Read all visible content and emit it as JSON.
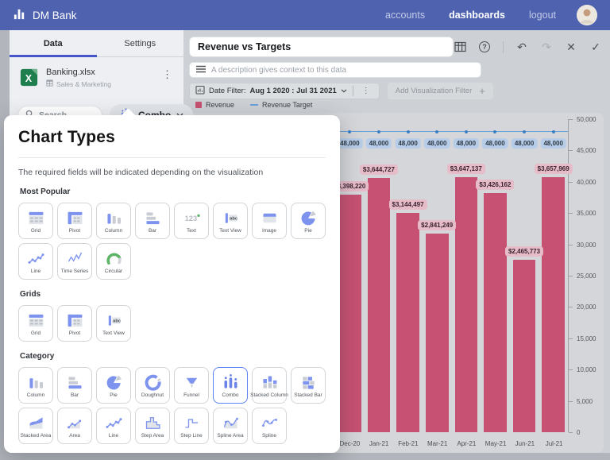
{
  "navbar": {
    "brand": "DM Bank",
    "links": [
      {
        "label": "accounts",
        "active": false
      },
      {
        "label": "dashboards",
        "active": true
      },
      {
        "label": "logout",
        "active": false
      }
    ]
  },
  "left_panel": {
    "tabs": [
      {
        "label": "Data",
        "active": true
      },
      {
        "label": "Settings",
        "active": false
      }
    ],
    "file": {
      "name": "Banking.xlsx",
      "sheet": "Sales & Marketing"
    },
    "search_placeholder": "Search...",
    "chart_type_button": {
      "label": "Combo",
      "icon": "combo-icon"
    }
  },
  "header": {
    "title": "Revenue vs Targets",
    "description_placeholder": "A description gives context to this data",
    "date_filter": {
      "label": "Date Filter:",
      "value": "Aug 1 2020 : Jul 31 2021"
    },
    "add_filter_label": "Add Visualization Filter",
    "toolbar_icons": [
      "table-grid-icon",
      "help-icon",
      "undo-icon",
      "redo-icon",
      "close-icon",
      "confirm-icon"
    ]
  },
  "chart_data": {
    "type": "combo",
    "title": "Revenue vs Targets",
    "categories": [
      "Dec-20",
      "Jan-21",
      "Feb-21",
      "Mar-21",
      "Apr-21",
      "May-21",
      "Jun-21",
      "Jul-21"
    ],
    "series": [
      {
        "name": "Revenue",
        "type": "column",
        "color": "#c65172",
        "values": [
          3398220,
          3644727,
          3144497,
          2841249,
          3647137,
          3426162,
          2465773,
          3657969
        ],
        "labels": [
          "$3,398,220",
          "$3,644,727",
          "$3,144,497",
          "$2,841,249",
          "$3,647,137",
          "$3,426,162",
          "$2,465,773",
          "$3,657,969"
        ]
      },
      {
        "name": "Revenue Target",
        "type": "line",
        "color": "#69a0d8",
        "values": [
          48000,
          48000,
          48000,
          48000,
          48000,
          48000,
          48000,
          48000
        ],
        "labels": [
          "48,000",
          "48,000",
          "48,000",
          "48,000",
          "48,000",
          "48,000",
          "48,000",
          "48,000"
        ]
      }
    ],
    "right_axis": {
      "min": 0,
      "max": 50000,
      "tick_labels": [
        "50,000",
        "45,000",
        "40,000",
        "35,000",
        "30,000",
        "25,000",
        "20,000",
        "15,000",
        "10,000",
        "5,000",
        "0"
      ]
    },
    "legend": [
      {
        "label": "Revenue",
        "color": "#c65172",
        "marker": "square"
      },
      {
        "label": "Revenue Target",
        "color": "#69a0d8",
        "marker": "line"
      }
    ],
    "grid": false,
    "legend_position": "top-left"
  },
  "modal": {
    "title": "Chart Types",
    "subtitle": "The required fields will be indicated depending on the visualization",
    "sections": [
      {
        "title": "Most Popular",
        "items": [
          {
            "label": "Grid",
            "icon": "grid-icon"
          },
          {
            "label": "Pivot",
            "icon": "pivot-icon"
          },
          {
            "label": "Column",
            "icon": "column-icon"
          },
          {
            "label": "Bar",
            "icon": "bar-icon"
          },
          {
            "label": "Text",
            "icon": "text-icon"
          },
          {
            "label": "Text View",
            "icon": "text-view-icon"
          },
          {
            "label": "Image",
            "icon": "image-icon"
          },
          {
            "label": "Pie",
            "icon": "pie-icon"
          },
          {
            "label": "Line",
            "icon": "line-icon"
          },
          {
            "label": "Time Series",
            "icon": "time-series-icon"
          },
          {
            "label": "Circular",
            "icon": "circular-icon"
          }
        ]
      },
      {
        "title": "Grids",
        "items": [
          {
            "label": "Grid",
            "icon": "grid-icon"
          },
          {
            "label": "Pivot",
            "icon": "pivot-icon"
          },
          {
            "label": "Text View",
            "icon": "text-view-icon"
          }
        ]
      },
      {
        "title": "Category",
        "items": [
          {
            "label": "Column",
            "icon": "column-icon"
          },
          {
            "label": "Bar",
            "icon": "bar-icon"
          },
          {
            "label": "Pie",
            "icon": "pie-icon"
          },
          {
            "label": "Doughnut",
            "icon": "doughnut-icon"
          },
          {
            "label": "Funnel",
            "icon": "funnel-icon"
          },
          {
            "label": "Combo",
            "icon": "combo-icon",
            "selected": true
          },
          {
            "label": "Stacked Column",
            "icon": "stacked-column-icon"
          },
          {
            "label": "Stacked Bar",
            "icon": "stacked-bar-icon"
          },
          {
            "label": "Stacked Area",
            "icon": "stacked-area-icon"
          },
          {
            "label": "Area",
            "icon": "area-icon"
          },
          {
            "label": "Line",
            "icon": "line-icon"
          },
          {
            "label": "Step Area",
            "icon": "step-area-icon"
          },
          {
            "label": "Step Line",
            "icon": "step-line-icon"
          },
          {
            "label": "Spline Area",
            "icon": "spline-area-icon"
          },
          {
            "label": "Spline",
            "icon": "spline-icon"
          }
        ]
      }
    ]
  }
}
